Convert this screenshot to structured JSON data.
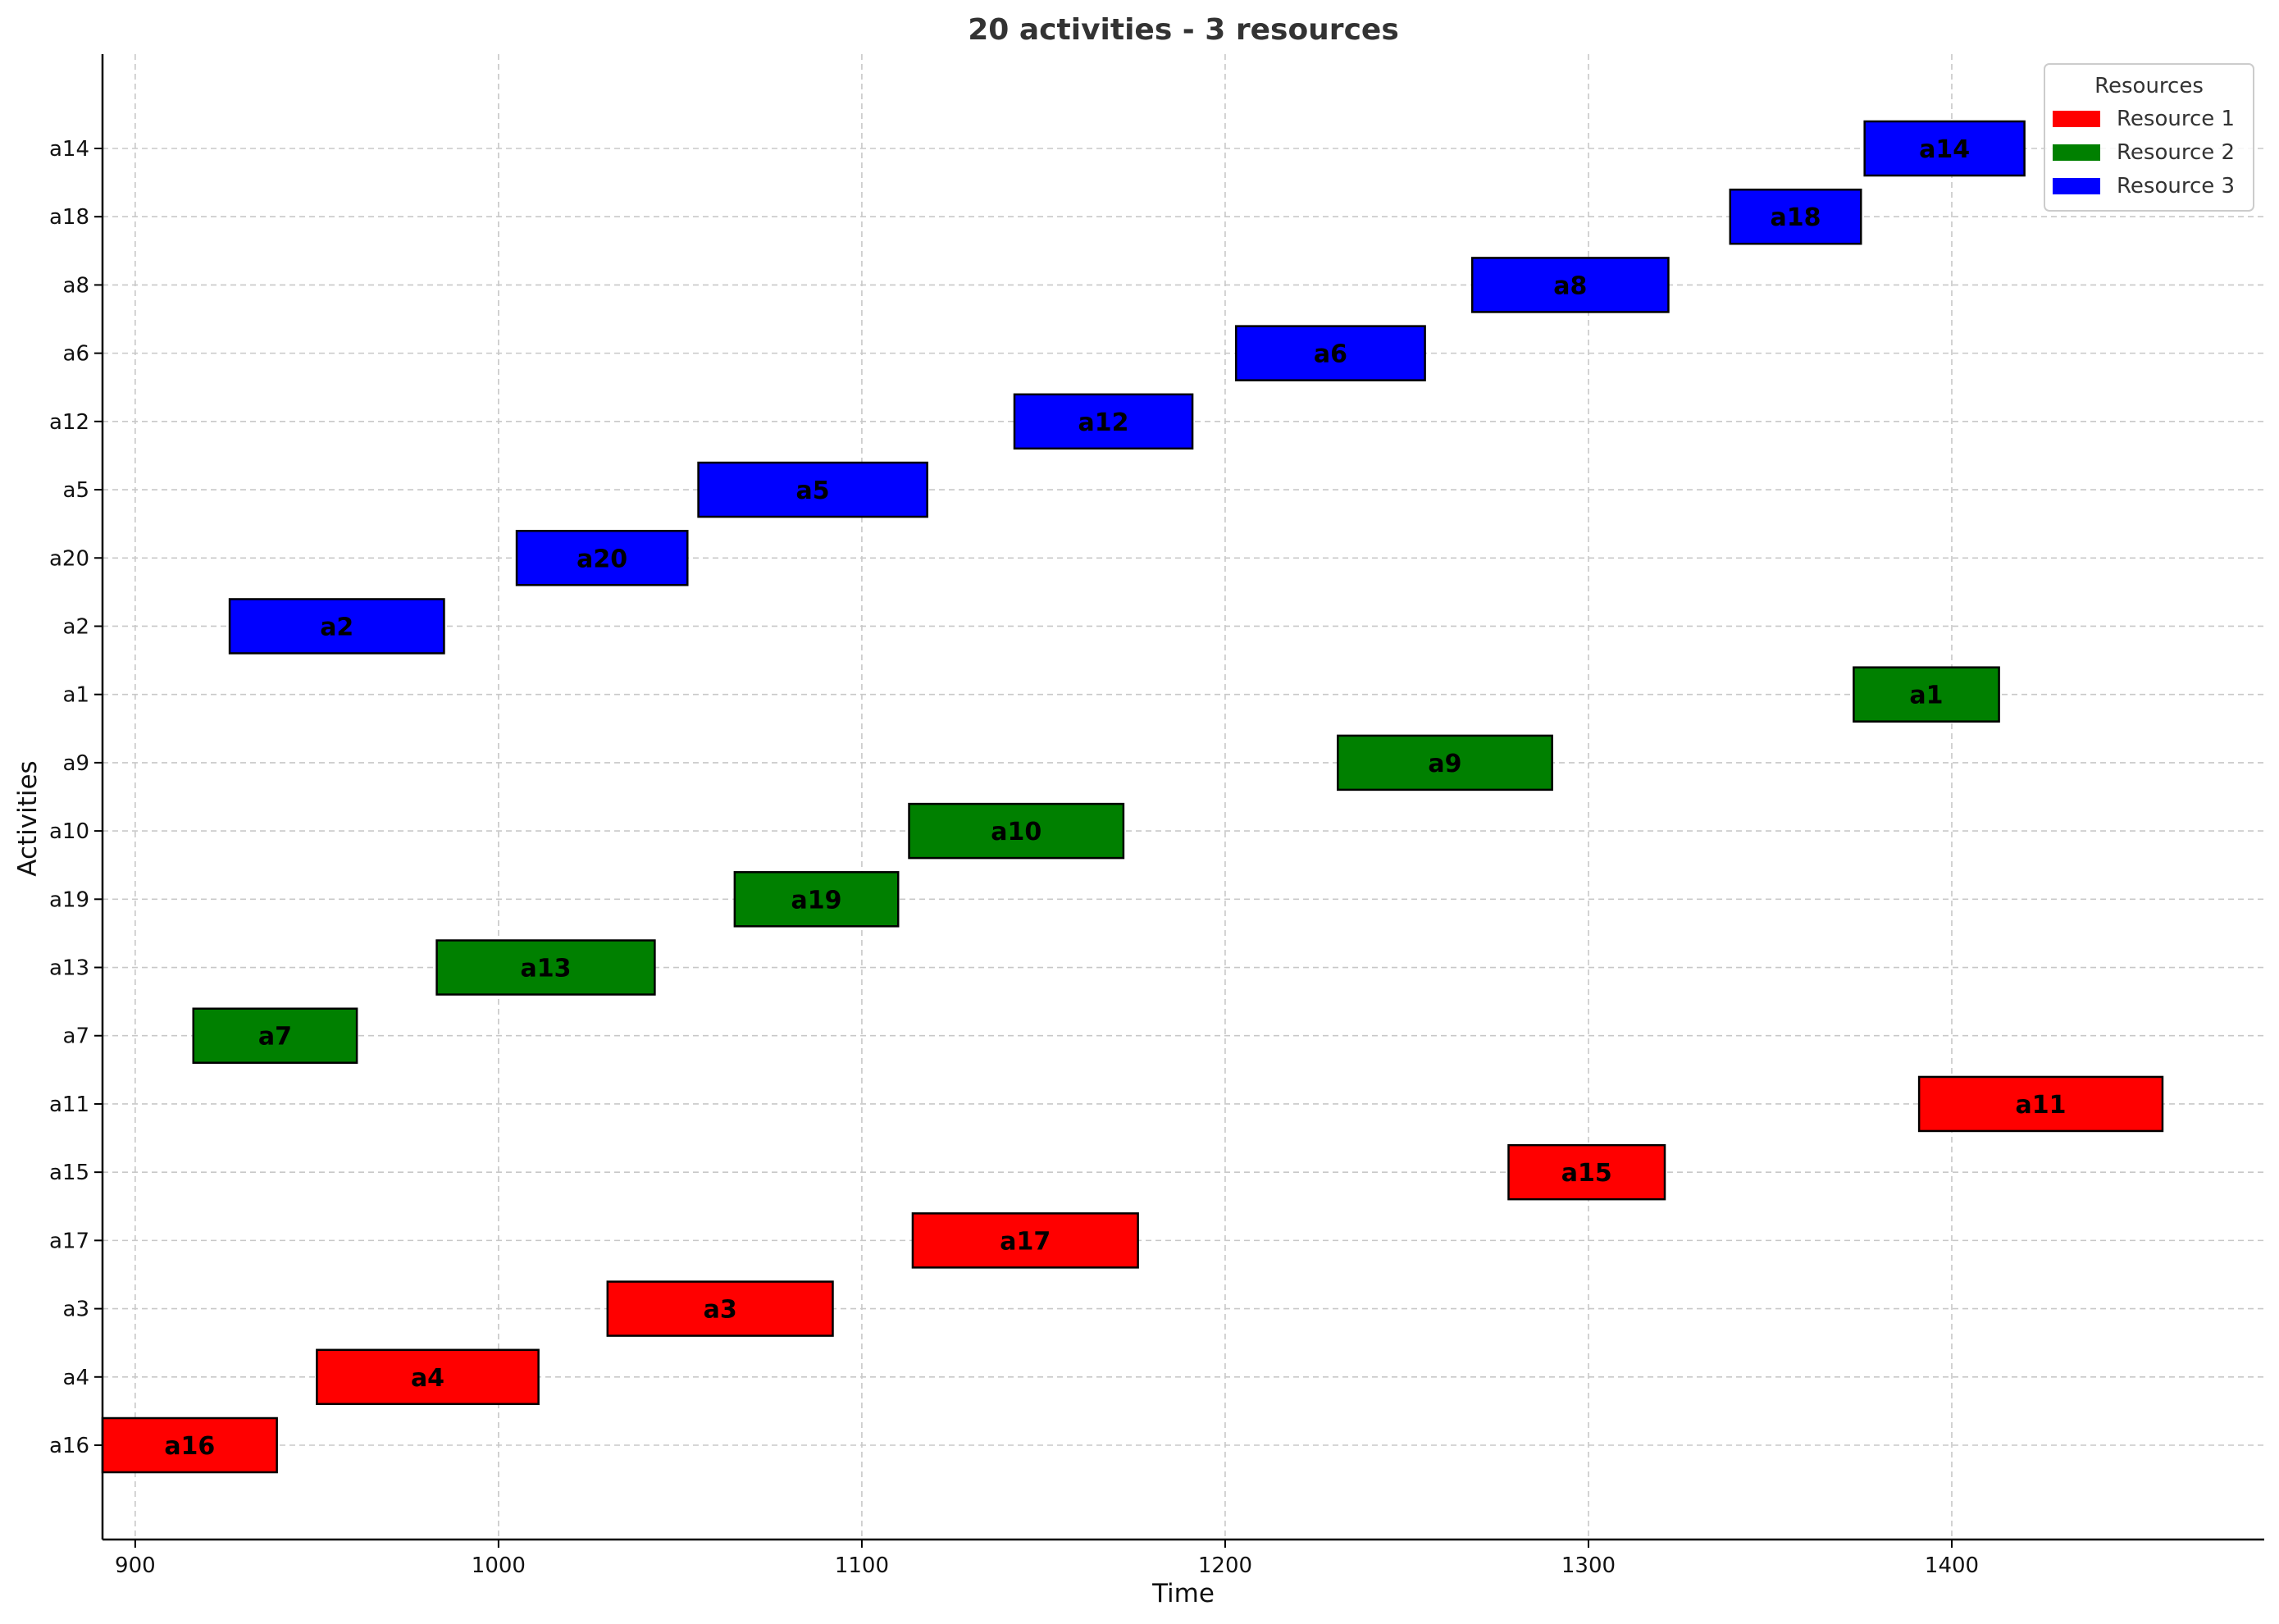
{
  "chart_data": {
    "type": "gantt",
    "title": "20 activities - 3 resources",
    "xlabel": "Time",
    "ylabel": "Activities",
    "xlim": [
      891,
      1486
    ],
    "x_ticks": [
      900,
      1000,
      1100,
      1200,
      1300,
      1400
    ],
    "grid": true,
    "legend": {
      "title": "Resources",
      "placement": "top-right",
      "entries": [
        {
          "name": "Resource 1",
          "color": "#ff0000"
        },
        {
          "name": "Resource 2",
          "color": "#008000"
        },
        {
          "name": "Resource 3",
          "color": "#0000ff"
        }
      ]
    },
    "categories": [
      "a16",
      "a4",
      "a3",
      "a17",
      "a15",
      "a11",
      "a7",
      "a13",
      "a19",
      "a10",
      "a9",
      "a1",
      "a2",
      "a20",
      "a5",
      "a12",
      "a6",
      "a8",
      "a18",
      "a14"
    ],
    "tasks": [
      {
        "activity": "a16",
        "start": 891,
        "end": 939,
        "resource": "Resource 1"
      },
      {
        "activity": "a4",
        "start": 950,
        "end": 1011,
        "resource": "Resource 1"
      },
      {
        "activity": "a3",
        "start": 1030,
        "end": 1092,
        "resource": "Resource 1"
      },
      {
        "activity": "a17",
        "start": 1114,
        "end": 1176,
        "resource": "Resource 1"
      },
      {
        "activity": "a15",
        "start": 1278,
        "end": 1321,
        "resource": "Resource 1"
      },
      {
        "activity": "a11",
        "start": 1391,
        "end": 1458,
        "resource": "Resource 1"
      },
      {
        "activity": "a7",
        "start": 916,
        "end": 961,
        "resource": "Resource 2"
      },
      {
        "activity": "a13",
        "start": 983,
        "end": 1043,
        "resource": "Resource 2"
      },
      {
        "activity": "a19",
        "start": 1065,
        "end": 1110,
        "resource": "Resource 2"
      },
      {
        "activity": "a10",
        "start": 1113,
        "end": 1172,
        "resource": "Resource 2"
      },
      {
        "activity": "a9",
        "start": 1231,
        "end": 1290,
        "resource": "Resource 2"
      },
      {
        "activity": "a1",
        "start": 1373,
        "end": 1413,
        "resource": "Resource 2"
      },
      {
        "activity": "a2",
        "start": 926,
        "end": 985,
        "resource": "Resource 3"
      },
      {
        "activity": "a20",
        "start": 1005,
        "end": 1052,
        "resource": "Resource 3"
      },
      {
        "activity": "a5",
        "start": 1055,
        "end": 1118,
        "resource": "Resource 3"
      },
      {
        "activity": "a12",
        "start": 1142,
        "end": 1191,
        "resource": "Resource 3"
      },
      {
        "activity": "a6",
        "start": 1203,
        "end": 1255,
        "resource": "Resource 3"
      },
      {
        "activity": "a8",
        "start": 1268,
        "end": 1322,
        "resource": "Resource 3"
      },
      {
        "activity": "a18",
        "start": 1339,
        "end": 1375,
        "resource": "Resource 3"
      },
      {
        "activity": "a14",
        "start": 1376,
        "end": 1420,
        "resource": "Resource 3"
      }
    ]
  }
}
